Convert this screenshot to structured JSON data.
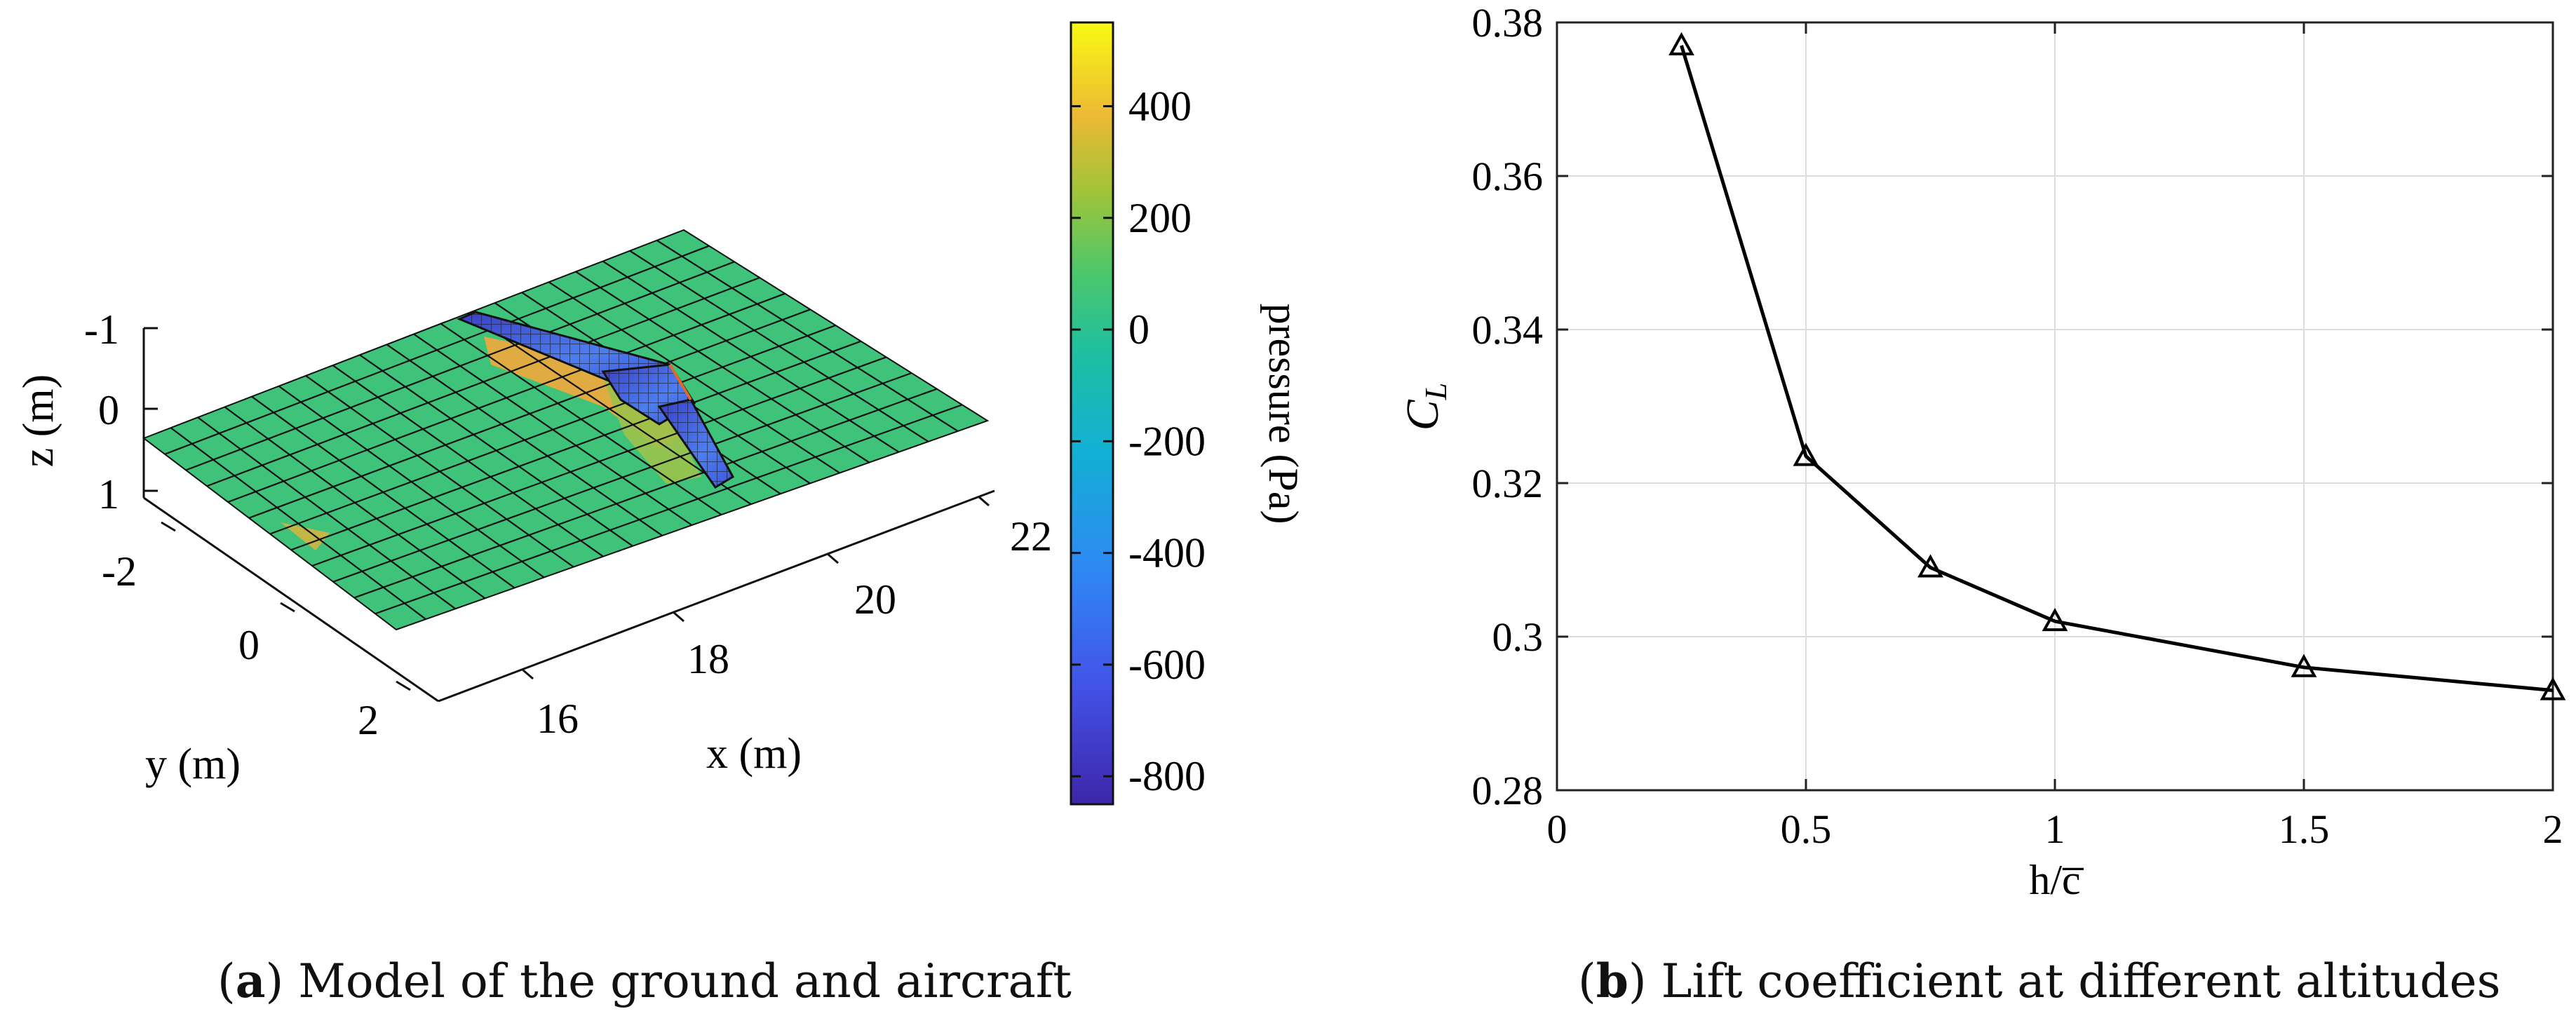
{
  "chart_data": [
    {
      "type": "surface3d",
      "panel": "(a)",
      "caption_label": "a",
      "caption_text": "Model of the ground and aircraft",
      "xlabel": "x (m)",
      "ylabel": "y (m)",
      "zlabel": "z (m)",
      "x_ticks": [
        "16",
        "18",
        "20",
        "22"
      ],
      "y_ticks": [
        "-2",
        "0",
        "2"
      ],
      "z_ticks": [
        "-1",
        "0",
        "1"
      ],
      "colorbar": {
        "label": "pressure (Pa)",
        "range": [
          -850,
          550
        ],
        "ticks": [
          {
            "value": 400,
            "label": "400"
          },
          {
            "value": 200,
            "label": "200"
          },
          {
            "value": 0,
            "label": "0"
          },
          {
            "value": -200,
            "label": "-200"
          },
          {
            "value": -400,
            "label": "-400"
          },
          {
            "value": -600,
            "label": "-600"
          },
          {
            "value": -800,
            "label": "-800"
          }
        ]
      },
      "colors": {
        "ground": "#3fc27a",
        "mesh_line": "#111111",
        "high_pressure": "#f2a93a",
        "mid_pressure": "#9bc24a",
        "low_pressure": "#3b48d0"
      }
    },
    {
      "type": "line",
      "panel": "(b)",
      "caption_label": "b",
      "caption_text": "Lift coefficient at different altitudes",
      "xlabel": "h/c̅",
      "ylabel": "C",
      "ylabel_sub": "L",
      "x": [
        0.25,
        0.5,
        0.75,
        1.0,
        1.5,
        2.0
      ],
      "y": [
        0.377,
        0.3235,
        0.309,
        0.302,
        0.296,
        0.293
      ],
      "marker": "triangle-open",
      "xlim": [
        0,
        2
      ],
      "ylim": [
        0.28,
        0.38
      ],
      "x_ticks": [
        {
          "value": 0,
          "label": "0"
        },
        {
          "value": 0.5,
          "label": "0.5"
        },
        {
          "value": 1,
          "label": "1"
        },
        {
          "value": 1.5,
          "label": "1.5"
        },
        {
          "value": 2,
          "label": "2"
        }
      ],
      "y_ticks": [
        {
          "value": 0.28,
          "label": "0.28"
        },
        {
          "value": 0.3,
          "label": "0.3"
        },
        {
          "value": 0.32,
          "label": "0.32"
        },
        {
          "value": 0.34,
          "label": "0.34"
        },
        {
          "value": 0.36,
          "label": "0.36"
        },
        {
          "value": 0.38,
          "label": "0.38"
        }
      ],
      "grid": true,
      "colors": {
        "line": "#000000",
        "grid": "#dcdcdc",
        "axis": "#222222"
      }
    }
  ]
}
